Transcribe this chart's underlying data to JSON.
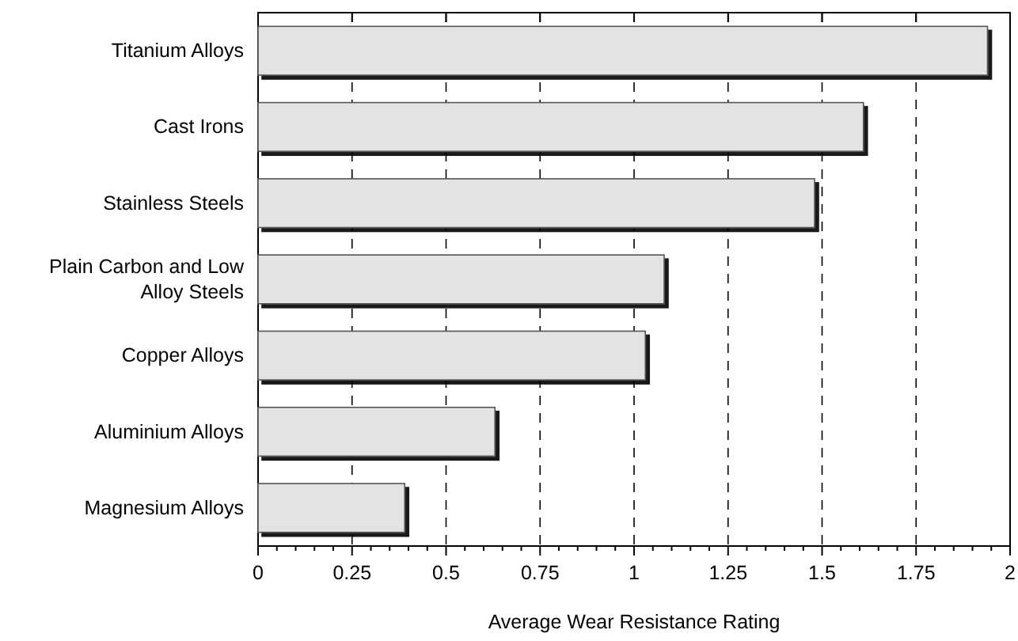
{
  "chart_data": {
    "type": "bar",
    "orientation": "horizontal",
    "xlabel": "Average Wear Resistance Rating",
    "categories": [
      "Titanium Alloys",
      "Cast Irons",
      "Stainless Steels",
      "Plain Carbon and Low Alloy Steels",
      "Copper Alloys",
      "Aluminium Alloys",
      "Magnesium Alloys"
    ],
    "values": [
      1.94,
      1.61,
      1.48,
      1.08,
      1.03,
      0.63,
      0.39
    ],
    "color": "#e2e4e4",
    "xlim": [
      0,
      2
    ],
    "xticks": [
      0,
      0.25,
      0.5,
      0.75,
      1,
      1.25,
      1.5,
      1.75,
      2
    ],
    "grid": "x"
  }
}
